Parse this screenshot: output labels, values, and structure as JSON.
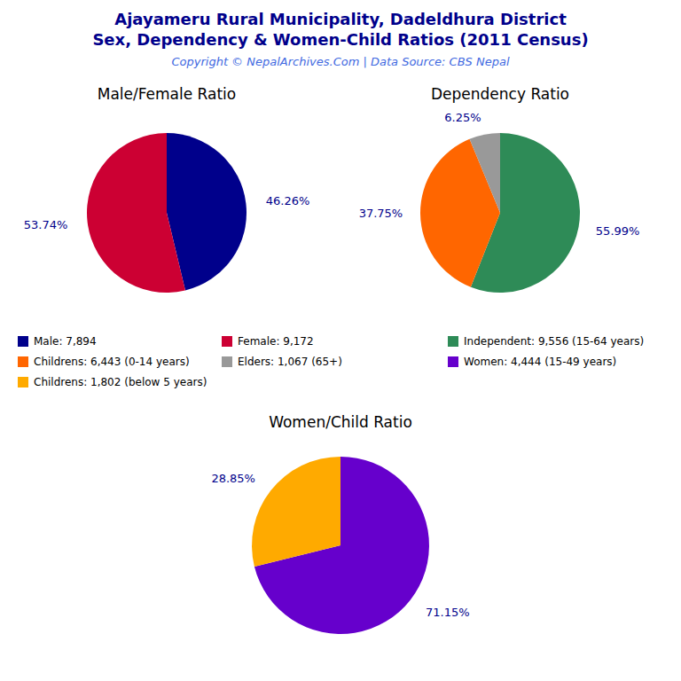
{
  "title": "Ajayameru Rural Municipality, Dadeldhura District",
  "subtitle": "Sex, Dependency & Women-Child Ratios (2011 Census)",
  "annotations": [
    "Copyright © NepalArchives.Com | Data Source: CBS Nepal"
  ],
  "chart_data": [
    {
      "type": "pie",
      "title": "Male/Female Ratio",
      "categories": [
        "Male: 7,894",
        "Female: 9,172"
      ],
      "values": [
        46.26,
        53.74
      ],
      "value_labels": [
        "46.26%",
        "53.74%"
      ],
      "colors": [
        "#00008B",
        "#CC0033"
      ],
      "data_labels": true,
      "legend": "bottom"
    },
    {
      "type": "pie",
      "title": "Dependency Ratio",
      "categories": [
        "Independent: 9,556 (15-64 years)",
        "Childrens: 6,443 (0-14 years)",
        "Elders: 1,067 (65+)"
      ],
      "values": [
        55.99,
        37.75,
        6.25
      ],
      "value_labels": [
        "55.99%",
        "37.75%",
        "6.25%"
      ],
      "colors": [
        "#2E8B57",
        "#FF6600",
        "#999999"
      ],
      "data_labels": true,
      "legend": "bottom"
    },
    {
      "type": "pie",
      "title": "Women/Child Ratio",
      "categories": [
        "Women: 4,444 (15-49 years)",
        "Childrens: 1,802 (below 5 years)"
      ],
      "values": [
        71.15,
        28.85
      ],
      "value_labels": [
        "71.15%",
        "28.85%"
      ],
      "colors": [
        "#6600CC",
        "#FFAA00"
      ],
      "data_labels": true,
      "legend": "top"
    }
  ]
}
